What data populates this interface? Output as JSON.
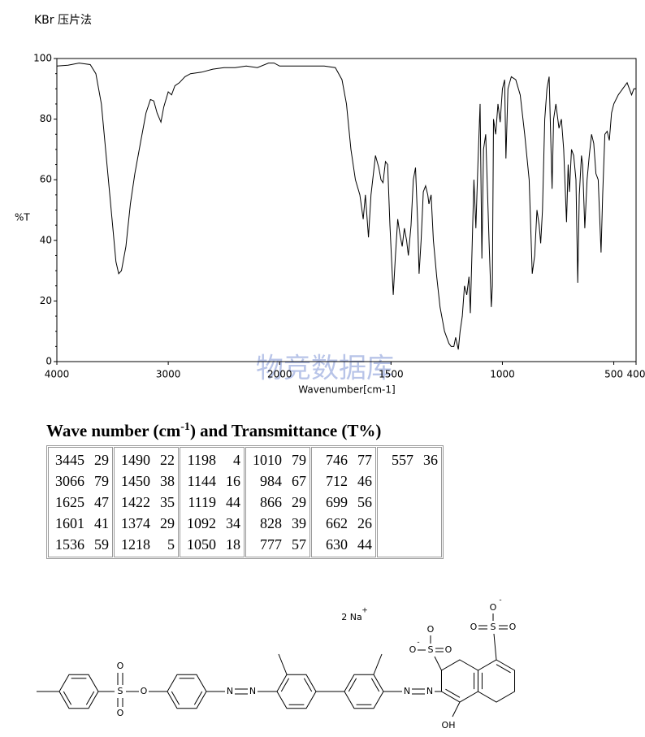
{
  "chart_data": {
    "type": "line",
    "title": "KBr 压片法",
    "watermark": "物竞数据库",
    "x_label": "Wavenumber[cm-1]",
    "y_label": "%T",
    "color": "#000000",
    "xlim": [
      4000,
      400
    ],
    "x_segments": [
      {
        "from": 4000,
        "to": 2000,
        "weight": 1
      },
      {
        "from": 2000,
        "to": 400,
        "weight": 2
      }
    ],
    "xticks": [
      4000,
      3000,
      2000,
      1500,
      1000,
      500,
      400
    ],
    "ylim": [
      0,
      100
    ],
    "yticks": [
      0,
      20,
      40,
      60,
      80,
      100
    ],
    "x": [
      4000,
      3900,
      3800,
      3700,
      3650,
      3600,
      3550,
      3500,
      3470,
      3445,
      3420,
      3380,
      3340,
      3300,
      3250,
      3200,
      3160,
      3130,
      3100,
      3066,
      3040,
      3000,
      2970,
      2940,
      2900,
      2850,
      2800,
      2700,
      2600,
      2500,
      2400,
      2300,
      2200,
      2100,
      2050,
      2000,
      1900,
      1800,
      1750,
      1720,
      1700,
      1680,
      1660,
      1640,
      1625,
      1615,
      1601,
      1590,
      1570,
      1555,
      1545,
      1536,
      1525,
      1515,
      1505,
      1490,
      1480,
      1470,
      1460,
      1450,
      1440,
      1430,
      1422,
      1410,
      1400,
      1390,
      1380,
      1374,
      1365,
      1355,
      1345,
      1335,
      1330,
      1320,
      1310,
      1295,
      1280,
      1260,
      1240,
      1230,
      1218,
      1210,
      1198,
      1190,
      1180,
      1170,
      1160,
      1150,
      1144,
      1135,
      1128,
      1119,
      1110,
      1100,
      1092,
      1085,
      1075,
      1060,
      1050,
      1045,
      1040,
      1030,
      1020,
      1010,
      1000,
      990,
      984,
      975,
      960,
      940,
      920,
      900,
      880,
      866,
      855,
      845,
      835,
      828,
      820,
      810,
      800,
      790,
      777,
      770,
      760,
      746,
      735,
      725,
      712,
      705,
      699,
      690,
      680,
      670,
      662,
      655,
      645,
      640,
      630,
      620,
      610,
      600,
      590,
      580,
      570,
      557,
      550,
      540,
      530,
      520,
      510,
      500,
      480,
      460,
      440,
      420,
      410,
      400
    ],
    "values": [
      97.5,
      97.8,
      98.5,
      98,
      95,
      85,
      65,
      45,
      33,
      29,
      30,
      38,
      52,
      62,
      72,
      82,
      86.5,
      86,
      82,
      79,
      84,
      89,
      88,
      91,
      92,
      94,
      95,
      95.5,
      96.5,
      97,
      97,
      97.5,
      97,
      98.5,
      98.5,
      97.5,
      97.5,
      97.5,
      97,
      93,
      85,
      70,
      60,
      55,
      47,
      55,
      41,
      55,
      68,
      64,
      60,
      59,
      66,
      65,
      45,
      22,
      35,
      47,
      42,
      38,
      44,
      40,
      35,
      45,
      60,
      64,
      45,
      29,
      40,
      56,
      58,
      55,
      52,
      55,
      40,
      28,
      18,
      10,
      6,
      5,
      5,
      8,
      4,
      10,
      15,
      25,
      22,
      28,
      16,
      40,
      60,
      44,
      65,
      85,
      34,
      70,
      75,
      40,
      18,
      25,
      80,
      75,
      85,
      79,
      90,
      93,
      67,
      90,
      94,
      93,
      88,
      75,
      60,
      29,
      35,
      50,
      45,
      39,
      50,
      80,
      90,
      94,
      57,
      80,
      85,
      77,
      80,
      70,
      46,
      65,
      56,
      70,
      68,
      60,
      26,
      55,
      68,
      65,
      44,
      60,
      68,
      75,
      72,
      62,
      60,
      36,
      55,
      75,
      76,
      73,
      82,
      85,
      88,
      90,
      92,
      88,
      90,
      90
    ]
  },
  "table": {
    "title": [
      "Wave number (cm",
      "-1",
      ") and Transmittance (T%)"
    ],
    "columns": [
      [
        [
          3445,
          29
        ],
        [
          3066,
          79
        ],
        [
          1625,
          47
        ],
        [
          1601,
          41
        ],
        [
          1536,
          59
        ]
      ],
      [
        [
          1490,
          22
        ],
        [
          1450,
          38
        ],
        [
          1422,
          35
        ],
        [
          1374,
          29
        ],
        [
          1218,
          5
        ]
      ],
      [
        [
          1198,
          4
        ],
        [
          1144,
          16
        ],
        [
          1119,
          44
        ],
        [
          1092,
          34
        ],
        [
          1050,
          18
        ]
      ],
      [
        [
          1010,
          79
        ],
        [
          984,
          67
        ],
        [
          866,
          29
        ],
        [
          828,
          39
        ],
        [
          777,
          57
        ]
      ],
      [
        [
          746,
          77
        ],
        [
          712,
          46
        ],
        [
          699,
          56
        ],
        [
          662,
          26
        ],
        [
          630,
          44
        ]
      ],
      [
        [
          557,
          36
        ]
      ]
    ]
  },
  "structure": {
    "labels": [
      "S",
      "O",
      "O",
      "O",
      "N",
      "N",
      "N",
      "N",
      "2 Na",
      "+",
      "S",
      "O",
      "O",
      "-",
      "O",
      "S",
      "O",
      "O",
      "O",
      "-",
      "OH"
    ]
  }
}
